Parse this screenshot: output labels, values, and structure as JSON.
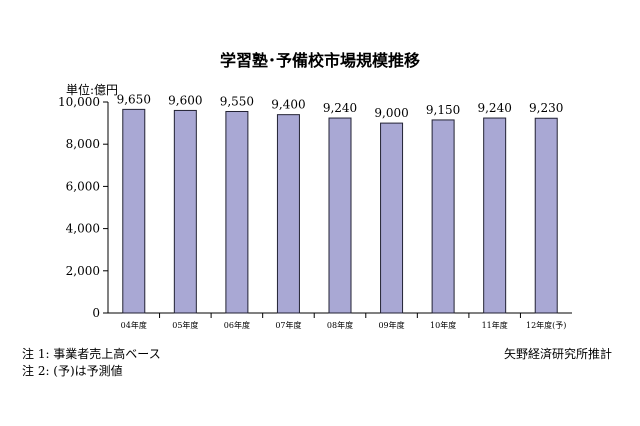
{
  "chart_data": {
    "type": "bar",
    "title": "学習塾･予備校市場規模推移",
    "unit_label": "単位:億円",
    "categories": [
      "04年度",
      "05年度",
      "06年度",
      "07年度",
      "08年度",
      "09年度",
      "10年度",
      "11年度",
      "12年度(予)"
    ],
    "values": [
      9650,
      9600,
      9550,
      9400,
      9240,
      9000,
      9150,
      9240,
      9230
    ],
    "value_labels": [
      "9,650",
      "9,600",
      "9,550",
      "9,400",
      "9,240",
      "9,000",
      "9,150",
      "9,240",
      "9,230"
    ],
    "ylim": [
      0,
      10000
    ],
    "yticks": [
      0,
      2000,
      4000,
      6000,
      8000,
      10000
    ],
    "ytick_labels": [
      "0",
      "2,000",
      "4,000",
      "6,000",
      "8,000",
      "10,000"
    ],
    "grid": false,
    "bar_fill": "#a9a8d4",
    "bar_edge": "#222233"
  },
  "notes": [
    "注 1:  事業者売上高ベース",
    "注 2:  (予)は予測値"
  ],
  "source": "矢野経済研究所推計"
}
